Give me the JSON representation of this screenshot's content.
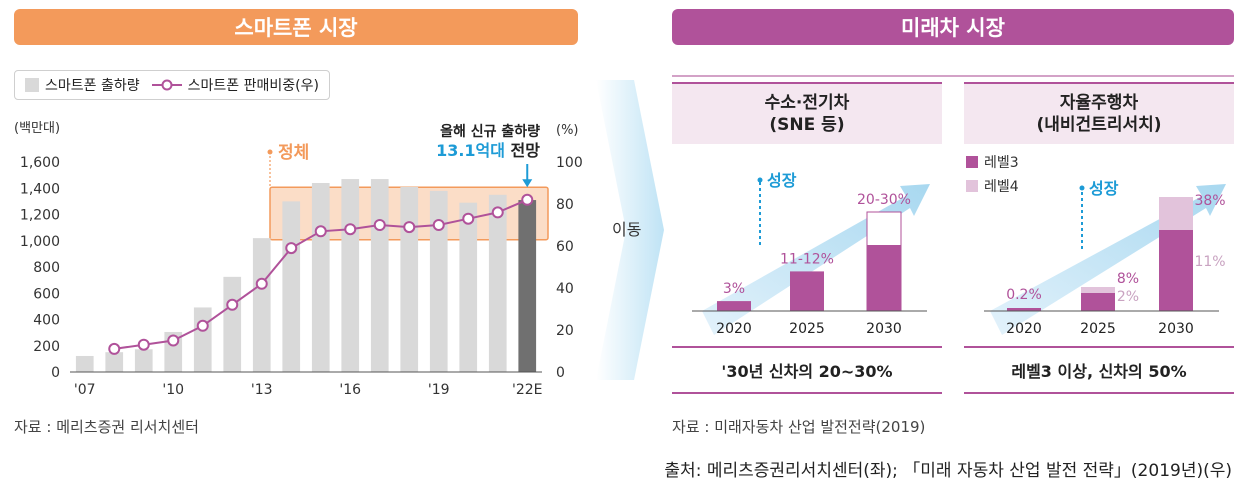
{
  "left": {
    "banner": "스마트폰 시장",
    "legend": {
      "bar": "스마트폰 출하량",
      "line": "스마트폰 판매비중(우)"
    },
    "y_left_unit": "(백만대)",
    "y_right_unit": "(%)",
    "stagnation_label": "정체",
    "note_line1": "올해 신규 출하량",
    "note_line2_value": "13.1억대",
    "note_line2_suffix": " 전망",
    "source": "자료 : 메리츠증권 리서치센터"
  },
  "right": {
    "banner": "미래차 시장",
    "move_label": "이동",
    "panel1": {
      "title_line1": "수소·전기차",
      "title_line2": "(SNE 등)",
      "growth": "성장",
      "summary": "'30년 신차의 20~30%"
    },
    "panel2": {
      "title_line1": "자율주행차",
      "title_line2": "(내비건트리서치)",
      "legend_level3": "레벨3",
      "legend_level4": "레벨4",
      "growth": "성장",
      "summary": "레벨3 이상, 신차의 50%"
    },
    "source": "자료 : 미래자동차 산업 발전전략(2019)"
  },
  "footer_source": "출처: 메리츠증권리서치센터(좌); 「미래 자동차 산업 발전 전략」(2019년)(우)",
  "colors": {
    "orange": "#f39a5b",
    "purple": "#b0529a",
    "lightpurple": "#e2c3db",
    "bar_gray": "#d9d9d9",
    "bar_dark": "#707070",
    "blue": "#1d9bd6"
  },
  "chart_data": [
    {
      "type": "bar+line",
      "categories": [
        "2007",
        "2008",
        "2009",
        "2010",
        "2011",
        "2012",
        "2013",
        "2014",
        "2015",
        "2016",
        "2017",
        "2018",
        "2019",
        "2020",
        "2021",
        "2022E"
      ],
      "x_tick_labels": [
        "'07",
        "'10",
        "'13",
        "'16",
        "'19",
        "'22E"
      ],
      "series": [
        {
          "name": "스마트폰 출하량",
          "axis": "left",
          "values": [
            122,
            151,
            173,
            305,
            492,
            725,
            1020,
            1300,
            1440,
            1470,
            1470,
            1410,
            1380,
            1290,
            1350,
            1310
          ]
        },
        {
          "name": "스마트폰 판매비중(우)",
          "axis": "right",
          "values": [
            null,
            11,
            13,
            15,
            22,
            32,
            42,
            59,
            67,
            68,
            70,
            69,
            70,
            73,
            76,
            82
          ]
        }
      ],
      "y_left": {
        "ylim": [
          0,
          1600
        ],
        "ticks": [
          0,
          200,
          400,
          600,
          800,
          1000,
          1200,
          1400,
          1600
        ]
      },
      "y_right": {
        "ylim": [
          0,
          100
        ],
        "ticks": [
          0,
          20,
          40,
          60,
          80,
          100
        ]
      },
      "highlight_range_right": [
        63,
        88
      ]
    },
    {
      "type": "bar",
      "title": "수소·전기차 (SNE 등)",
      "categories": [
        "2020",
        "2025",
        "2030"
      ],
      "values": [
        3,
        12,
        30
      ],
      "range_low_2030": 20,
      "labels": [
        "3%",
        "11-12%",
        "20-30%"
      ]
    },
    {
      "type": "stacked-bar",
      "title": "자율주행차 (내비건트리서치)",
      "categories": [
        "2020",
        "2025",
        "2030"
      ],
      "series": [
        {
          "name": "레벨3",
          "values": [
            0.2,
            6,
            27
          ],
          "labels": [
            "0.2%",
            "8%",
            ""
          ]
        },
        {
          "name": "레벨4",
          "values": [
            0,
            2,
            11
          ],
          "labels": [
            "",
            "2%",
            "11%"
          ]
        }
      ],
      "total_label_2030": "38%"
    }
  ]
}
